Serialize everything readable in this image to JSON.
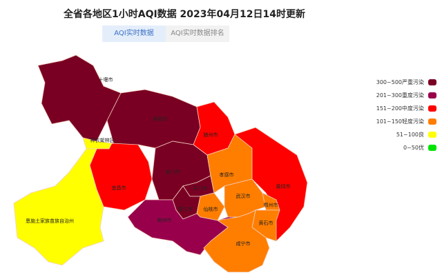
{
  "title": "全省各地区1小时AQI数据 2023年04月12日14时更新",
  "tabs": [
    {
      "label": "AQI实时数据",
      "active": true
    },
    {
      "label": "AQI实时数据排名",
      "active": false
    }
  ],
  "legend": [
    {
      "label": "300~500严重污染",
      "color": "#7a0023"
    },
    {
      "label": "201~300重度污染",
      "color": "#99004c"
    },
    {
      "label": "151~200中度污染",
      "color": "#ff0000"
    },
    {
      "label": "101~150轻度污染",
      "color": "#ff7e00"
    },
    {
      "label": "51~100良",
      "color": "#ffff00"
    },
    {
      "label": "0~50优",
      "color": "#00e400"
    }
  ],
  "regions": [
    {
      "name": "十堰市",
      "level": 0
    },
    {
      "name": "襄阳市",
      "level": 0
    },
    {
      "name": "随州市",
      "level": 2
    },
    {
      "name": "神农架林区",
      "level": 4
    },
    {
      "name": "宜昌市",
      "level": 2
    },
    {
      "name": "恩施土家族苗族自治州",
      "level": 4
    },
    {
      "name": "荆门市",
      "level": 0
    },
    {
      "name": "天门市",
      "level": 0
    },
    {
      "name": "潜江市",
      "level": 0
    },
    {
      "name": "仙桃市",
      "level": 3
    },
    {
      "name": "荆州市",
      "level": 1
    },
    {
      "name": "孝感市",
      "level": 3
    },
    {
      "name": "武汉市",
      "level": 3
    },
    {
      "name": "黄冈市",
      "level": 2
    },
    {
      "name": "鄂州市",
      "level": 3
    },
    {
      "name": "黄石市",
      "level": 3
    },
    {
      "name": "咸宁市",
      "level": 3
    }
  ]
}
